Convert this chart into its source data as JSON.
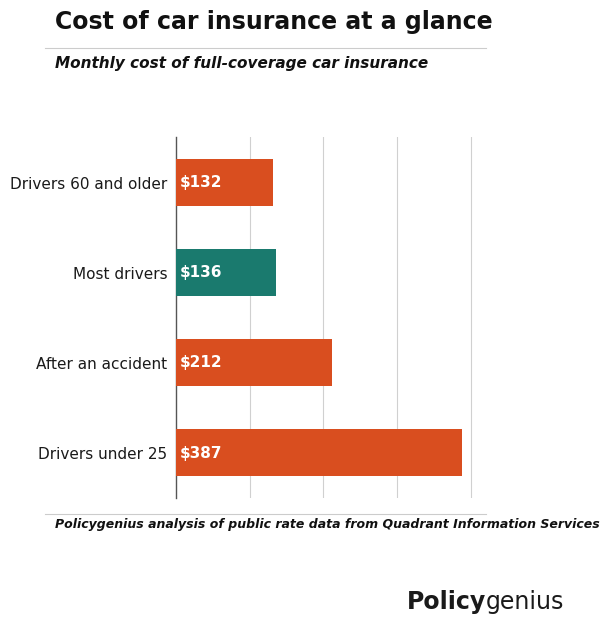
{
  "title": "Cost of car insurance at a glance",
  "subtitle": "Monthly cost of full-coverage car insurance",
  "footnote": "Policygenius analysis of public rate data from Quadrant Information Services",
  "categories": [
    "Drivers 60 and older",
    "Most drivers",
    "After an accident",
    "Drivers under 25"
  ],
  "values": [
    132,
    136,
    212,
    387
  ],
  "labels": [
    "$132",
    "$136",
    "$212",
    "$387"
  ],
  "bar_colors": [
    "#D94E1F",
    "#1A7A6E",
    "#D94E1F",
    "#D94E1F"
  ],
  "background_color": "#FFFFFF",
  "title_fontsize": 17,
  "subtitle_fontsize": 11,
  "label_fontsize": 11,
  "category_fontsize": 11,
  "footnote_fontsize": 9,
  "xlim": [
    0,
    420
  ],
  "bar_height": 0.52,
  "logo_policy": "Policy",
  "logo_genius": "genius",
  "logo_fontsize": 17
}
